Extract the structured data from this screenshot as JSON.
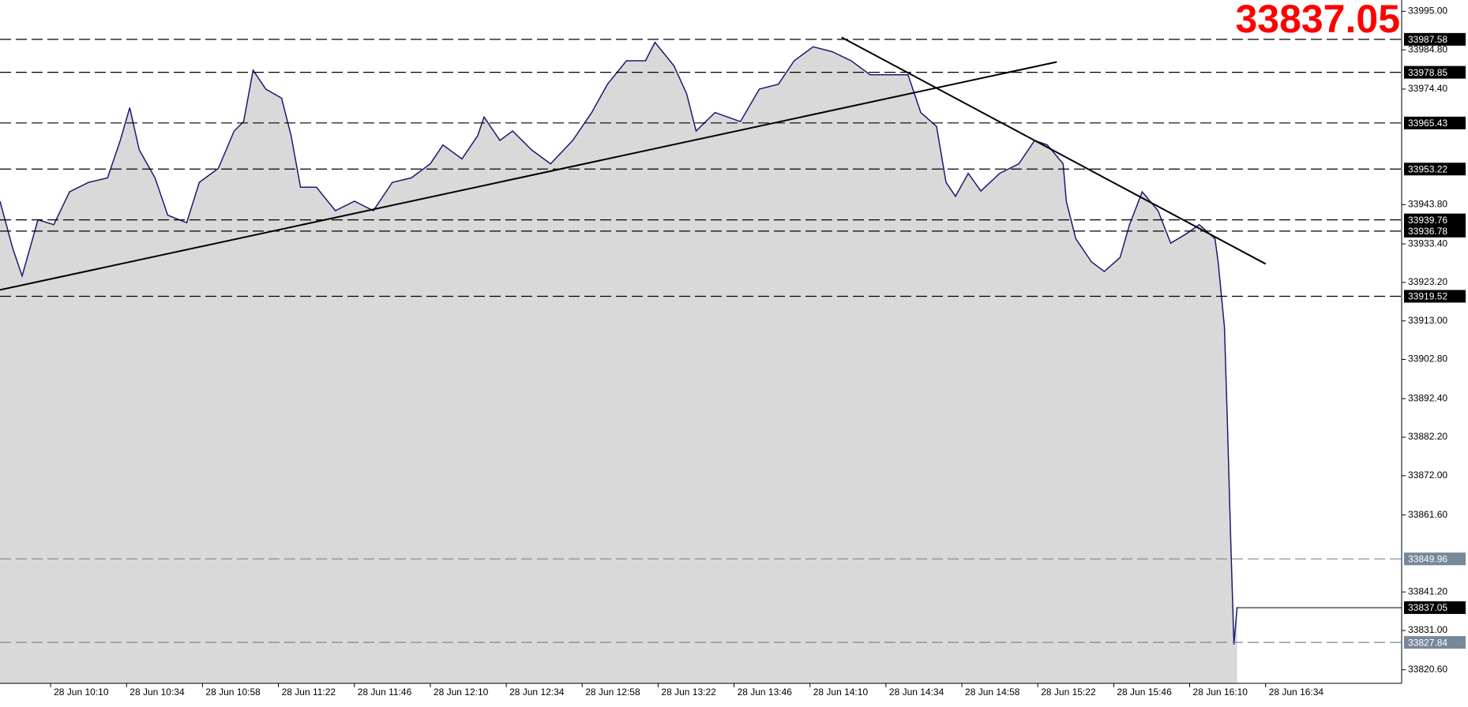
{
  "chart_data": {
    "type": "area",
    "title": "33837.05",
    "last_price": 33837.05,
    "x": [
      "28 Jun 09:54",
      "28 Jun 09:58",
      "28 Jun 10:01",
      "28 Jun 10:06",
      "28 Jun 10:11",
      "28 Jun 10:16",
      "28 Jun 10:22",
      "28 Jun 10:28",
      "28 Jun 10:32",
      "28 Jun 10:35",
      "28 Jun 10:38",
      "28 Jun 10:43",
      "28 Jun 10:47",
      "28 Jun 10:53",
      "28 Jun 10:57",
      "28 Jun 11:03",
      "28 Jun 11:08",
      "28 Jun 11:11",
      "28 Jun 11:14",
      "28 Jun 11:18",
      "28 Jun 11:23",
      "28 Jun 11:26",
      "28 Jun 11:29",
      "28 Jun 11:34",
      "28 Jun 11:40",
      "28 Jun 11:46",
      "28 Jun 11:52",
      "28 Jun 11:58",
      "28 Jun 12:04",
      "28 Jun 12:10",
      "28 Jun 12:14",
      "28 Jun 12:20",
      "28 Jun 12:25",
      "28 Jun 12:27",
      "28 Jun 12:32",
      "28 Jun 12:36",
      "28 Jun 12:42",
      "28 Jun 12:48",
      "28 Jun 12:55",
      "28 Jun 13:01",
      "28 Jun 13:06",
      "28 Jun 13:12",
      "28 Jun 13:18",
      "28 Jun 13:21",
      "28 Jun 13:27",
      "28 Jun 13:31",
      "28 Jun 13:34",
      "28 Jun 13:40",
      "28 Jun 13:48",
      "28 Jun 13:54",
      "28 Jun 14:00",
      "28 Jun 14:05",
      "28 Jun 14:11",
      "28 Jun 14:17",
      "28 Jun 14:23",
      "28 Jun 14:29",
      "28 Jun 14:35",
      "28 Jun 14:41",
      "28 Jun 14:45",
      "28 Jun 14:50",
      "28 Jun 14:53",
      "28 Jun 14:56",
      "28 Jun 15:00",
      "28 Jun 15:04",
      "28 Jun 15:10",
      "28 Jun 15:16",
      "28 Jun 15:21",
      "28 Jun 15:25",
      "28 Jun 15:30",
      "28 Jun 15:31",
      "28 Jun 15:34",
      "28 Jun 15:39",
      "28 Jun 15:43",
      "28 Jun 15:48",
      "28 Jun 15:51",
      "28 Jun 15:55",
      "28 Jun 16:00",
      "28 Jun 16:04",
      "28 Jun 16:09",
      "28 Jun 16:13",
      "28 Jun 16:18",
      "28 Jun 16:19",
      "28 Jun 16:21",
      "28 Jun 16:22",
      "28 Jun 16:23",
      "28 Jun 16:24",
      "28 Jun 16:25"
    ],
    "values": [
      33944.7,
      33932.3,
      33924.9,
      33939.8,
      33938.5,
      33947.2,
      33949.7,
      33950.9,
      33960.8,
      33969.5,
      33958.3,
      33950.9,
      33941.0,
      33939.0,
      33949.7,
      33953.4,
      33963.3,
      33965.8,
      33979.4,
      33974.4,
      33972.0,
      33962.1,
      33948.4,
      33948.4,
      33942.2,
      33944.7,
      33942.2,
      33949.7,
      33950.9,
      33954.6,
      33959.6,
      33955.9,
      33962.1,
      33967.0,
      33960.8,
      33963.3,
      33958.3,
      33954.6,
      33960.8,
      33968.2,
      33975.7,
      33981.9,
      33981.9,
      33986.8,
      33980.6,
      33973.2,
      33963.3,
      33968.2,
      33965.8,
      33974.4,
      33975.7,
      33981.9,
      33985.6,
      33984.3,
      33981.9,
      33978.2,
      33978.2,
      33978.2,
      33968.2,
      33964.5,
      33949.7,
      33946.0,
      33952.1,
      33947.4,
      33952.1,
      33954.6,
      33960.8,
      33959.6,
      33954.6,
      33944.7,
      33934.8,
      33928.6,
      33926.1,
      33929.8,
      33938.5,
      33947.2,
      33942.2,
      33933.6,
      33936.1,
      33938.5,
      33934.8,
      33928.6,
      33911.3,
      33884.0,
      33854.3,
      33827.3,
      33837.2
    ],
    "color": "#1a1a6e",
    "fill": "#d9d9d9",
    "xlim": [
      "28 Jun 09:54",
      "28 Jun 17:17"
    ],
    "xticks": [
      "28 Jun 10:10",
      "28 Jun 10:34",
      "28 Jun 10:58",
      "28 Jun 11:22",
      "28 Jun 11:46",
      "28 Jun 12:10",
      "28 Jun 12:34",
      "28 Jun 12:58",
      "28 Jun 13:22",
      "28 Jun 13:46",
      "28 Jun 14:10",
      "28 Jun 14:34",
      "28 Jun 14:58",
      "28 Jun 15:22",
      "28 Jun 15:46",
      "28 Jun 16:10",
      "28 Jun 16:34"
    ],
    "ylim": [
      33817,
      33998
    ],
    "yticks": [
      {
        "value": 33995,
        "label": "33995.00"
      },
      {
        "value": 33984.8,
        "label": "33984.80"
      },
      {
        "value": 33974.4,
        "label": "33974.40"
      },
      {
        "value": 33943.8,
        "label": "33943.80"
      },
      {
        "value": 33933.4,
        "label": "33933.40"
      },
      {
        "value": 33923.2,
        "label": "33923.20"
      },
      {
        "value": 33913,
        "label": "33913.00"
      },
      {
        "value": 33902.8,
        "label": "33902.80"
      },
      {
        "value": 33892.4,
        "label": "33892.40"
      },
      {
        "value": 33882.2,
        "label": "33882.20"
      },
      {
        "value": 33872,
        "label": "33872.00"
      },
      {
        "value": 33861.6,
        "label": "33861.60"
      },
      {
        "value": 33841.2,
        "label": "33841.20"
      },
      {
        "value": 33831,
        "label": "33831.00"
      },
      {
        "value": 33820.6,
        "label": "33820.60"
      }
    ],
    "levels": [
      {
        "value": 33987.58,
        "color": "#000000"
      },
      {
        "value": 33978.85,
        "color": "#000000"
      },
      {
        "value": 33965.43,
        "color": "#000000"
      },
      {
        "value": 33953.22,
        "color": "#000000"
      },
      {
        "value": 33939.76,
        "color": "#000000"
      },
      {
        "value": 33936.78,
        "color": "#000000"
      },
      {
        "value": 33919.52,
        "color": "#000000"
      },
      {
        "value": 33849.96,
        "color": "#778899"
      },
      {
        "value": 33827.84,
        "color": "#778899"
      }
    ],
    "trendlines": [
      {
        "x": [
          "28 Jun 09:54",
          "28 Jun 15:28"
        ],
        "values": [
          33921.2,
          33981.6
        ]
      },
      {
        "x": [
          "28 Jun 14:20",
          "28 Jun 16:34"
        ],
        "values": [
          33988.1,
          33928.1
        ]
      }
    ]
  }
}
